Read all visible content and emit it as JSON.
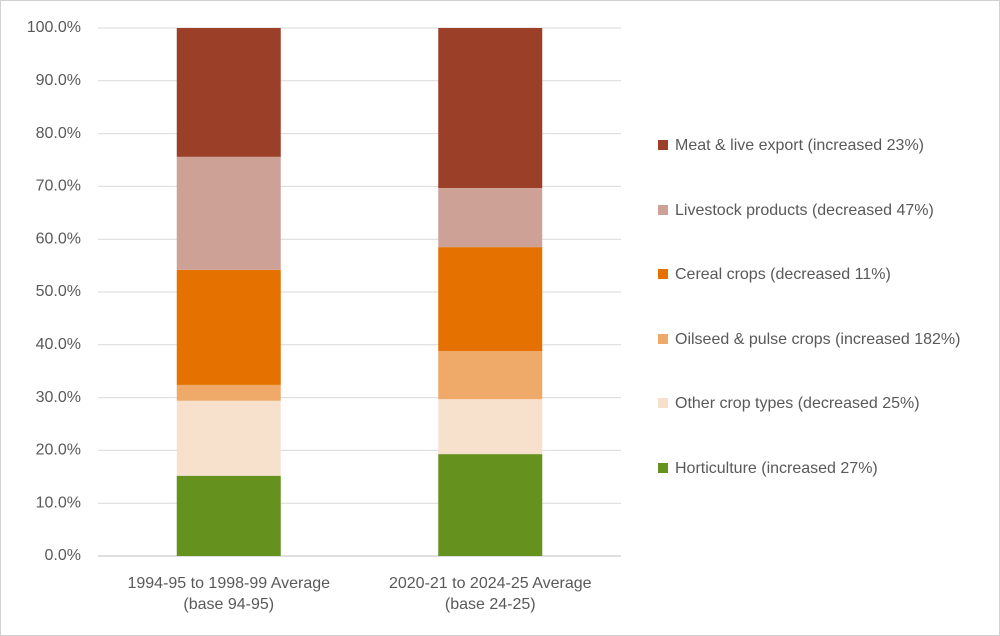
{
  "chart_data": {
    "type": "stacked_bar",
    "categories": [
      "1994-95 to 1998-99 Average (base 94-95)",
      "2020-21 to 2024-25 Average (base 24-25)"
    ],
    "series": [
      {
        "name": "Horticulture (increased 27%)",
        "color": "#65911e",
        "values": [
          15.2,
          19.3
        ]
      },
      {
        "name": "Other crop types (decreased 25%)",
        "color": "#f8e1cc",
        "values": [
          14.2,
          10.4
        ]
      },
      {
        "name": "Oilseed & pulse crops (increased 182%)",
        "color": "#efaa6a",
        "values": [
          3.0,
          9.1
        ]
      },
      {
        "name": "Cereal crops (decreased 11%)",
        "color": "#e57200",
        "values": [
          21.8,
          19.7
        ]
      },
      {
        "name": "Livestock products (decreased 47%)",
        "color": "#cda195",
        "values": [
          21.4,
          11.2
        ]
      },
      {
        "name": "Meat & live export (increased 23%)",
        "color": "#9b3f29",
        "values": [
          24.4,
          30.3
        ]
      }
    ],
    "ylim": [
      0,
      100
    ],
    "yticks": [
      {
        "value": 0,
        "label": "0.0%"
      },
      {
        "value": 10,
        "label": "10.0%"
      },
      {
        "value": 20,
        "label": "20.0%"
      },
      {
        "value": 30,
        "label": "30.0%"
      },
      {
        "value": 40,
        "label": "40.0%"
      },
      {
        "value": 50,
        "label": "50.0%"
      },
      {
        "value": 60,
        "label": "60.0%"
      },
      {
        "value": 70,
        "label": "70.0%"
      },
      {
        "value": 80,
        "label": "80.0%"
      },
      {
        "value": 90,
        "label": "90.0%"
      },
      {
        "value": 100,
        "label": "100.0%"
      }
    ],
    "grid": true
  }
}
